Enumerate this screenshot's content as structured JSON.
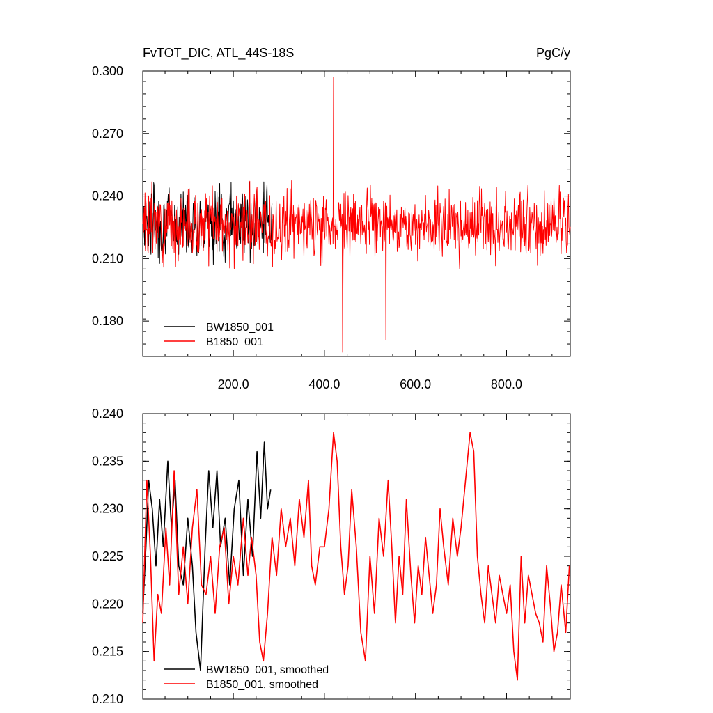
{
  "chart_data": [
    {
      "type": "line",
      "title": "FvTOT_DIC, ATL_44S-18S",
      "unit_label": "PgC/y",
      "xlim": [
        1,
        940
      ],
      "ylim": [
        0.163,
        0.3
      ],
      "yticks": [
        "0.180",
        "0.210",
        "0.240",
        "0.270",
        "0.300"
      ],
      "ytick_values": [
        0.18,
        0.21,
        0.24,
        0.27,
        0.3
      ],
      "xticks": [
        "200.0",
        "400.0",
        "600.0",
        "800.0"
      ],
      "xtick_values": [
        200,
        400,
        600,
        800
      ],
      "legend_position": "bottom-left",
      "series": [
        {
          "name": "BW1850_001",
          "color": "#000000",
          "x_start": 1,
          "x_end": 285,
          "mean": 0.228,
          "amplitude": 0.014,
          "seed": 7
        },
        {
          "name": "B1850_001",
          "color": "#ff0000",
          "x_start": 1,
          "x_end": 940,
          "mean": 0.226,
          "amplitude": 0.013,
          "seed": 3,
          "peaks": [
            {
              "x": 420,
              "y": 0.297
            },
            {
              "x": 440,
              "y": 0.165
            },
            {
              "x": 535,
              "y": 0.171
            }
          ]
        }
      ]
    },
    {
      "type": "line",
      "title": "",
      "xlim": [
        1,
        940
      ],
      "ylim": [
        0.21,
        0.24
      ],
      "yticks": [
        "0.210",
        "0.215",
        "0.220",
        "0.225",
        "0.230",
        "0.235",
        "0.240"
      ],
      "ytick_values": [
        0.21,
        0.215,
        0.22,
        0.225,
        0.23,
        0.235,
        0.24
      ],
      "xticks": [],
      "xtick_values": [
        200,
        400,
        600,
        800
      ],
      "legend_position": "bottom-left",
      "series": [
        {
          "name": "BW1850_001, smoothed",
          "color": "#000000",
          "points": [
            [
              1,
              0.219
            ],
            [
              8,
              0.226
            ],
            [
              14,
              0.233
            ],
            [
              22,
              0.23
            ],
            [
              30,
              0.224
            ],
            [
              38,
              0.231
            ],
            [
              46,
              0.226
            ],
            [
              56,
              0.235
            ],
            [
              64,
              0.228
            ],
            [
              72,
              0.233
            ],
            [
              80,
              0.224
            ],
            [
              90,
              0.222
            ],
            [
              100,
              0.229
            ],
            [
              110,
              0.224
            ],
            [
              118,
              0.217
            ],
            [
              128,
              0.213
            ],
            [
              138,
              0.226
            ],
            [
              146,
              0.234
            ],
            [
              155,
              0.228
            ],
            [
              164,
              0.234
            ],
            [
              172,
              0.226
            ],
            [
              182,
              0.229
            ],
            [
              192,
              0.222
            ],
            [
              202,
              0.23
            ],
            [
              212,
              0.233
            ],
            [
              222,
              0.223
            ],
            [
              232,
              0.231
            ],
            [
              242,
              0.225
            ],
            [
              252,
              0.236
            ],
            [
              260,
              0.229
            ],
            [
              268,
              0.237
            ],
            [
              275,
              0.23
            ],
            [
              282,
              0.232
            ]
          ]
        },
        {
          "name": "B1850_001, smoothed",
          "color": "#ff0000",
          "points": [
            [
              1,
              0.218
            ],
            [
              10,
              0.233
            ],
            [
              18,
              0.225
            ],
            [
              26,
              0.214
            ],
            [
              34,
              0.221
            ],
            [
              42,
              0.219
            ],
            [
              52,
              0.228
            ],
            [
              60,
              0.222
            ],
            [
              70,
              0.234
            ],
            [
              80,
              0.221
            ],
            [
              90,
              0.226
            ],
            [
              100,
              0.22
            ],
            [
              110,
              0.228
            ],
            [
              120,
              0.232
            ],
            [
              130,
              0.222
            ],
            [
              140,
              0.221
            ],
            [
              150,
              0.225
            ],
            [
              160,
              0.219
            ],
            [
              170,
              0.226
            ],
            [
              180,
              0.228
            ],
            [
              190,
              0.22
            ],
            [
              200,
              0.225
            ],
            [
              210,
              0.222
            ],
            [
              222,
              0.229
            ],
            [
              232,
              0.223
            ],
            [
              240,
              0.227
            ],
            [
              250,
              0.223
            ],
            [
              258,
              0.216
            ],
            [
              266,
              0.214
            ],
            [
              275,
              0.219
            ],
            [
              285,
              0.227
            ],
            [
              295,
              0.223
            ],
            [
              305,
              0.23
            ],
            [
              315,
              0.226
            ],
            [
              325,
              0.229
            ],
            [
              335,
              0.224
            ],
            [
              345,
              0.231
            ],
            [
              355,
              0.227
            ],
            [
              365,
              0.233
            ],
            [
              372,
              0.224
            ],
            [
              380,
              0.222
            ],
            [
              390,
              0.226
            ],
            [
              400,
              0.226
            ],
            [
              410,
              0.23
            ],
            [
              420,
              0.238
            ],
            [
              428,
              0.235
            ],
            [
              436,
              0.226
            ],
            [
              444,
              0.221
            ],
            [
              452,
              0.224
            ],
            [
              460,
              0.232
            ],
            [
              470,
              0.226
            ],
            [
              480,
              0.217
            ],
            [
              490,
              0.214
            ],
            [
              500,
              0.225
            ],
            [
              510,
              0.219
            ],
            [
              520,
              0.229
            ],
            [
              530,
              0.225
            ],
            [
              540,
              0.233
            ],
            [
              548,
              0.226
            ],
            [
              556,
              0.218
            ],
            [
              564,
              0.225
            ],
            [
              572,
              0.221
            ],
            [
              580,
              0.231
            ],
            [
              590,
              0.223
            ],
            [
              598,
              0.218
            ],
            [
              606,
              0.224
            ],
            [
              614,
              0.221
            ],
            [
              622,
              0.227
            ],
            [
              630,
              0.223
            ],
            [
              638,
              0.219
            ],
            [
              646,
              0.222
            ],
            [
              654,
              0.23
            ],
            [
              662,
              0.226
            ],
            [
              672,
              0.222
            ],
            [
              682,
              0.229
            ],
            [
              692,
              0.225
            ],
            [
              700,
              0.228
            ],
            [
              710,
              0.233
            ],
            [
              720,
              0.238
            ],
            [
              728,
              0.236
            ],
            [
              736,
              0.225
            ],
            [
              744,
              0.221
            ],
            [
              752,
              0.218
            ],
            [
              760,
              0.224
            ],
            [
              768,
              0.221
            ],
            [
              776,
              0.218
            ],
            [
              784,
              0.223
            ],
            [
              792,
              0.221
            ],
            [
              800,
              0.219
            ],
            [
              808,
              0.222
            ],
            [
              816,
              0.215
            ],
            [
              824,
              0.212
            ],
            [
              832,
              0.225
            ],
            [
              840,
              0.218
            ],
            [
              848,
              0.223
            ],
            [
              856,
              0.221
            ],
            [
              864,
              0.219
            ],
            [
              872,
              0.218
            ],
            [
              880,
              0.216
            ],
            [
              888,
              0.224
            ],
            [
              896,
              0.22
            ],
            [
              904,
              0.215
            ],
            [
              912,
              0.217
            ],
            [
              920,
              0.222
            ],
            [
              930,
              0.217
            ],
            [
              938,
              0.224
            ]
          ]
        }
      ]
    }
  ]
}
